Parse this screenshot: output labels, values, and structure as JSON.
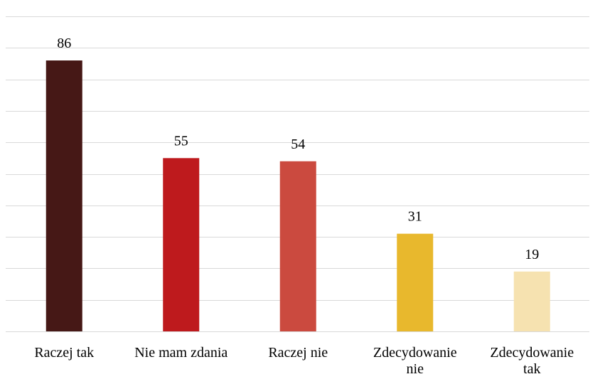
{
  "chart_data": {
    "type": "bar",
    "categories": [
      "Raczej tak",
      "Nie mam zdania",
      "Raczej nie",
      "Zdecydowanie nie",
      "Zdecydowanie tak"
    ],
    "category_lines": [
      [
        "Raczej tak"
      ],
      [
        "Nie mam zdania"
      ],
      [
        "Raczej nie"
      ],
      [
        "Zdecydowanie",
        "nie"
      ],
      [
        "Zdecydowanie",
        "tak"
      ]
    ],
    "values": [
      86,
      55,
      54,
      31,
      19
    ],
    "value_labels": [
      "86",
      "55",
      "54",
      "31",
      "19"
    ],
    "colors": [
      "#461816",
      "#be1a1d",
      "#cb4a3f",
      "#e8b82d",
      "#f6e2b0"
    ],
    "ylim": [
      0,
      100
    ],
    "gridline_step": 10,
    "grid": true,
    "legend": false,
    "title": "",
    "xlabel": "",
    "ylabel": ""
  }
}
